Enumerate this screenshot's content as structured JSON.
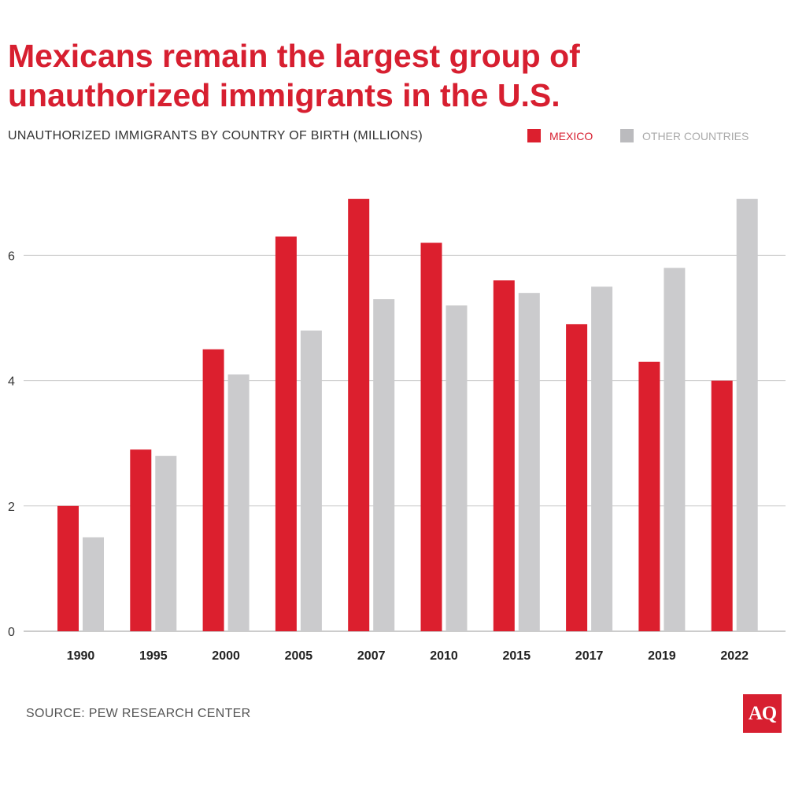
{
  "chart_data": {
    "type": "bar",
    "title": "Mexicans remain the largest group of unauthorized immigrants in the U.S.",
    "subtitle": "UNAUTHORIZED IMMIGRANTS BY COUNTRY OF BIRTH (MILLIONS)",
    "categories": [
      "1990",
      "1995",
      "2000",
      "2005",
      "2007",
      "2010",
      "2015",
      "2017",
      "2019",
      "2022"
    ],
    "series": [
      {
        "name": "MEXICO",
        "color": "#dc1f2e",
        "values": [
          2.0,
          2.9,
          4.5,
          6.3,
          6.9,
          6.2,
          5.6,
          4.9,
          4.3,
          4.0
        ]
      },
      {
        "name": "OTHER COUNTRIES",
        "color": "#cbcbcd",
        "values": [
          1.5,
          2.8,
          4.1,
          4.8,
          5.3,
          5.2,
          5.4,
          5.5,
          5.8,
          6.9
        ]
      }
    ],
    "yticks": [
      "0",
      "2",
      "4",
      "6"
    ],
    "ylim": [
      0,
      7
    ],
    "grid": true,
    "legend_position": "top-right",
    "xlabel": "",
    "ylabel": ""
  },
  "source": "SOURCE: PEW RESEARCH CENTER",
  "logo_text": "AQ"
}
